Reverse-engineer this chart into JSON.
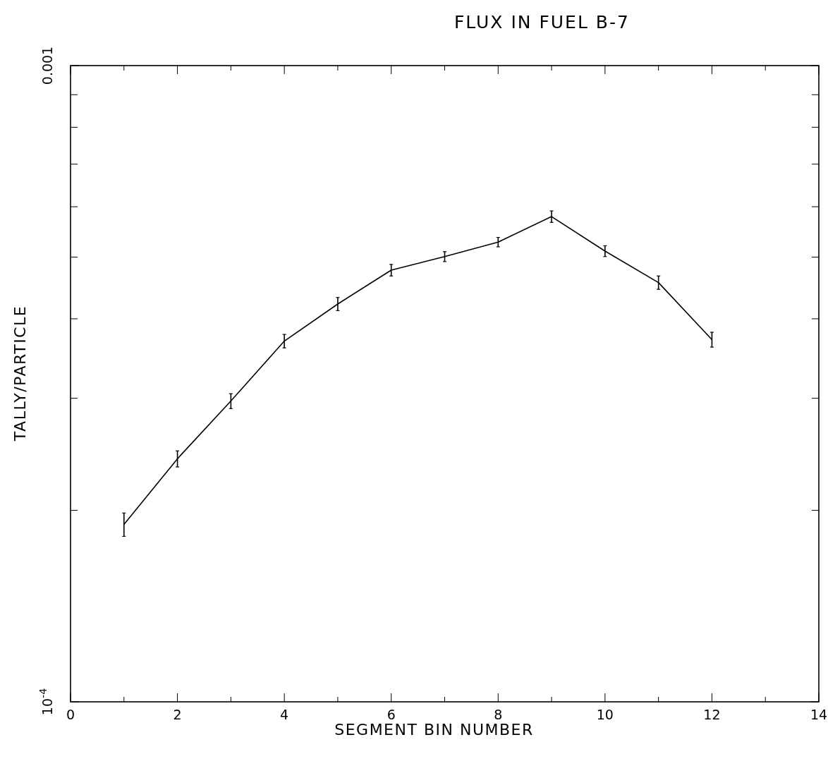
{
  "chart_data": {
    "type": "line",
    "title": "FLUX  IN  FUEL  B-7",
    "xlabel": "SEGMENT  BIN  NUMBER",
    "ylabel": "TALLY/PARTICLE",
    "x": [
      1,
      2,
      3,
      4,
      5,
      6,
      7,
      8,
      9,
      10,
      11,
      12
    ],
    "series": [
      {
        "color": "#000000",
        "values": [
          0.00019,
          0.000241,
          0.000297,
          0.000369,
          0.000422,
          0.000477,
          0.000501,
          0.000528,
          0.000579,
          0.000511,
          0.000456,
          0.000371
        ],
        "errors": [
          8e-06,
          7e-06,
          8e-06,
          9e-06,
          1e-05,
          1e-05,
          9e-06,
          9e-06,
          1.2e-05,
          1e-05,
          1.1e-05,
          1e-05
        ]
      }
    ],
    "log": "y",
    "xlim": [
      0,
      14
    ],
    "ylim": [
      0.0001,
      0.001
    ],
    "xticks": [
      0,
      {
        "value": 1,
        "label": null
      },
      2,
      {
        "value": 3,
        "label": null
      },
      4,
      {
        "value": 5,
        "label": null
      },
      6,
      {
        "value": 7,
        "label": null
      },
      8,
      {
        "value": 9,
        "label": null
      },
      10,
      {
        "value": 11,
        "label": null
      },
      12,
      {
        "value": 13,
        "label": null
      },
      14
    ],
    "yticks": [
      {
        "value": 0.0001,
        "label": "10$^{-4}$"
      },
      {
        "value": 0.0002,
        "label": null
      },
      {
        "value": 0.0003,
        "label": null
      },
      {
        "value": 0.0004,
        "label": null
      },
      {
        "value": 0.0005,
        "label": null
      },
      {
        "value": 0.0006,
        "label": null
      },
      {
        "value": 0.0007,
        "label": null
      },
      {
        "value": 0.0008,
        "label": null
      },
      {
        "value": 0.0009,
        "label": null
      },
      0.001
    ],
    "grid": false,
    "marker": "none",
    "line_style": "solid"
  }
}
